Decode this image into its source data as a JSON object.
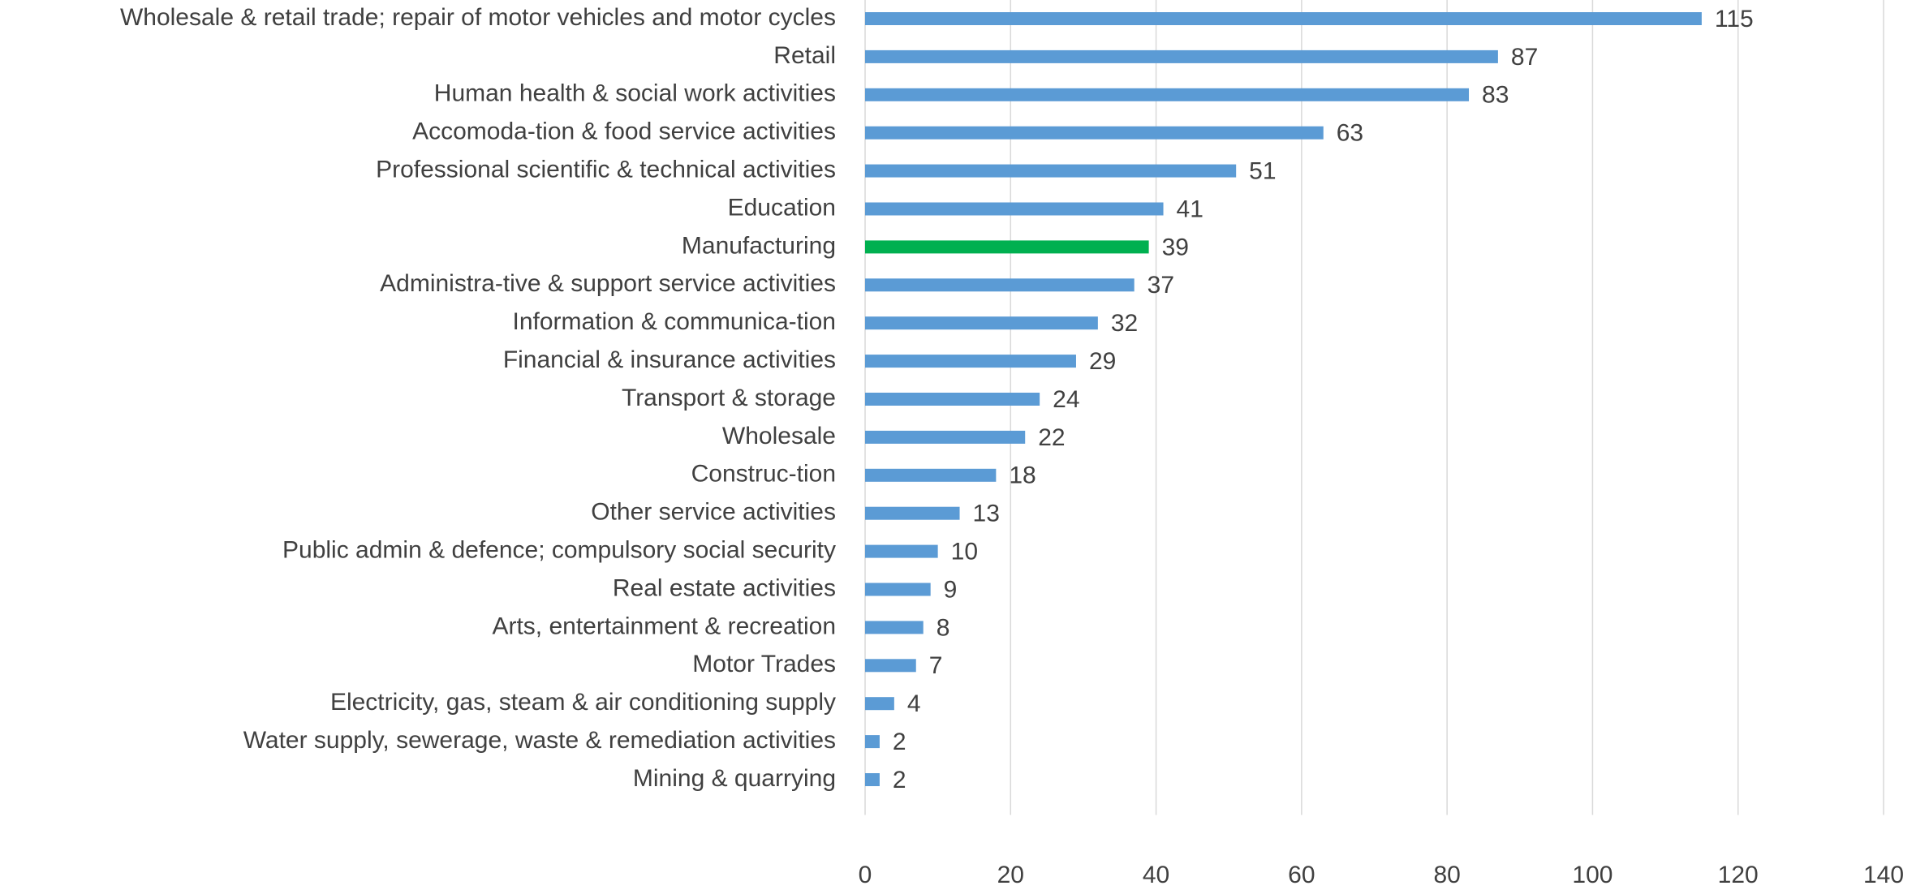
{
  "chart_data": {
    "type": "barh",
    "categories": [
      "Wholesale & retail trade; repair of motor vehicles and motor cycles",
      "Retail",
      "Human health & social work activities",
      "Accomoda-tion & food service activities",
      "Professional scientific & technical activities",
      "Education",
      "Manufacturing",
      "Administra-tive & support service activities",
      "Information & communica-tion",
      "Financial & insurance activities",
      "Transport & storage",
      "Wholesale",
      "Construc-tion",
      "Other service activities",
      "Public admin & defence; compulsory social security",
      "Real estate activities",
      "Arts, entertainment & recreation",
      "Motor Trades",
      "Electricity, gas, steam & air conditioning supply",
      "Water supply, sewerage, waste & remediation activities",
      "Mining & quarrying"
    ],
    "values": [
      115,
      87,
      83,
      63,
      51,
      41,
      39,
      37,
      32,
      29,
      24,
      22,
      18,
      13,
      10,
      9,
      8,
      7,
      4,
      2,
      2
    ],
    "colors": [
      "#5b9bd5",
      "#5b9bd5",
      "#5b9bd5",
      "#5b9bd5",
      "#5b9bd5",
      "#5b9bd5",
      "#00b050",
      "#5b9bd5",
      "#5b9bd5",
      "#5b9bd5",
      "#5b9bd5",
      "#5b9bd5",
      "#5b9bd5",
      "#5b9bd5",
      "#5b9bd5",
      "#5b9bd5",
      "#5b9bd5",
      "#5b9bd5",
      "#5b9bd5",
      "#5b9bd5",
      "#5b9bd5"
    ],
    "xlim": [
      0,
      140
    ],
    "xticks": [
      0,
      20,
      40,
      60,
      80,
      100,
      120,
      140
    ],
    "grid": true
  }
}
